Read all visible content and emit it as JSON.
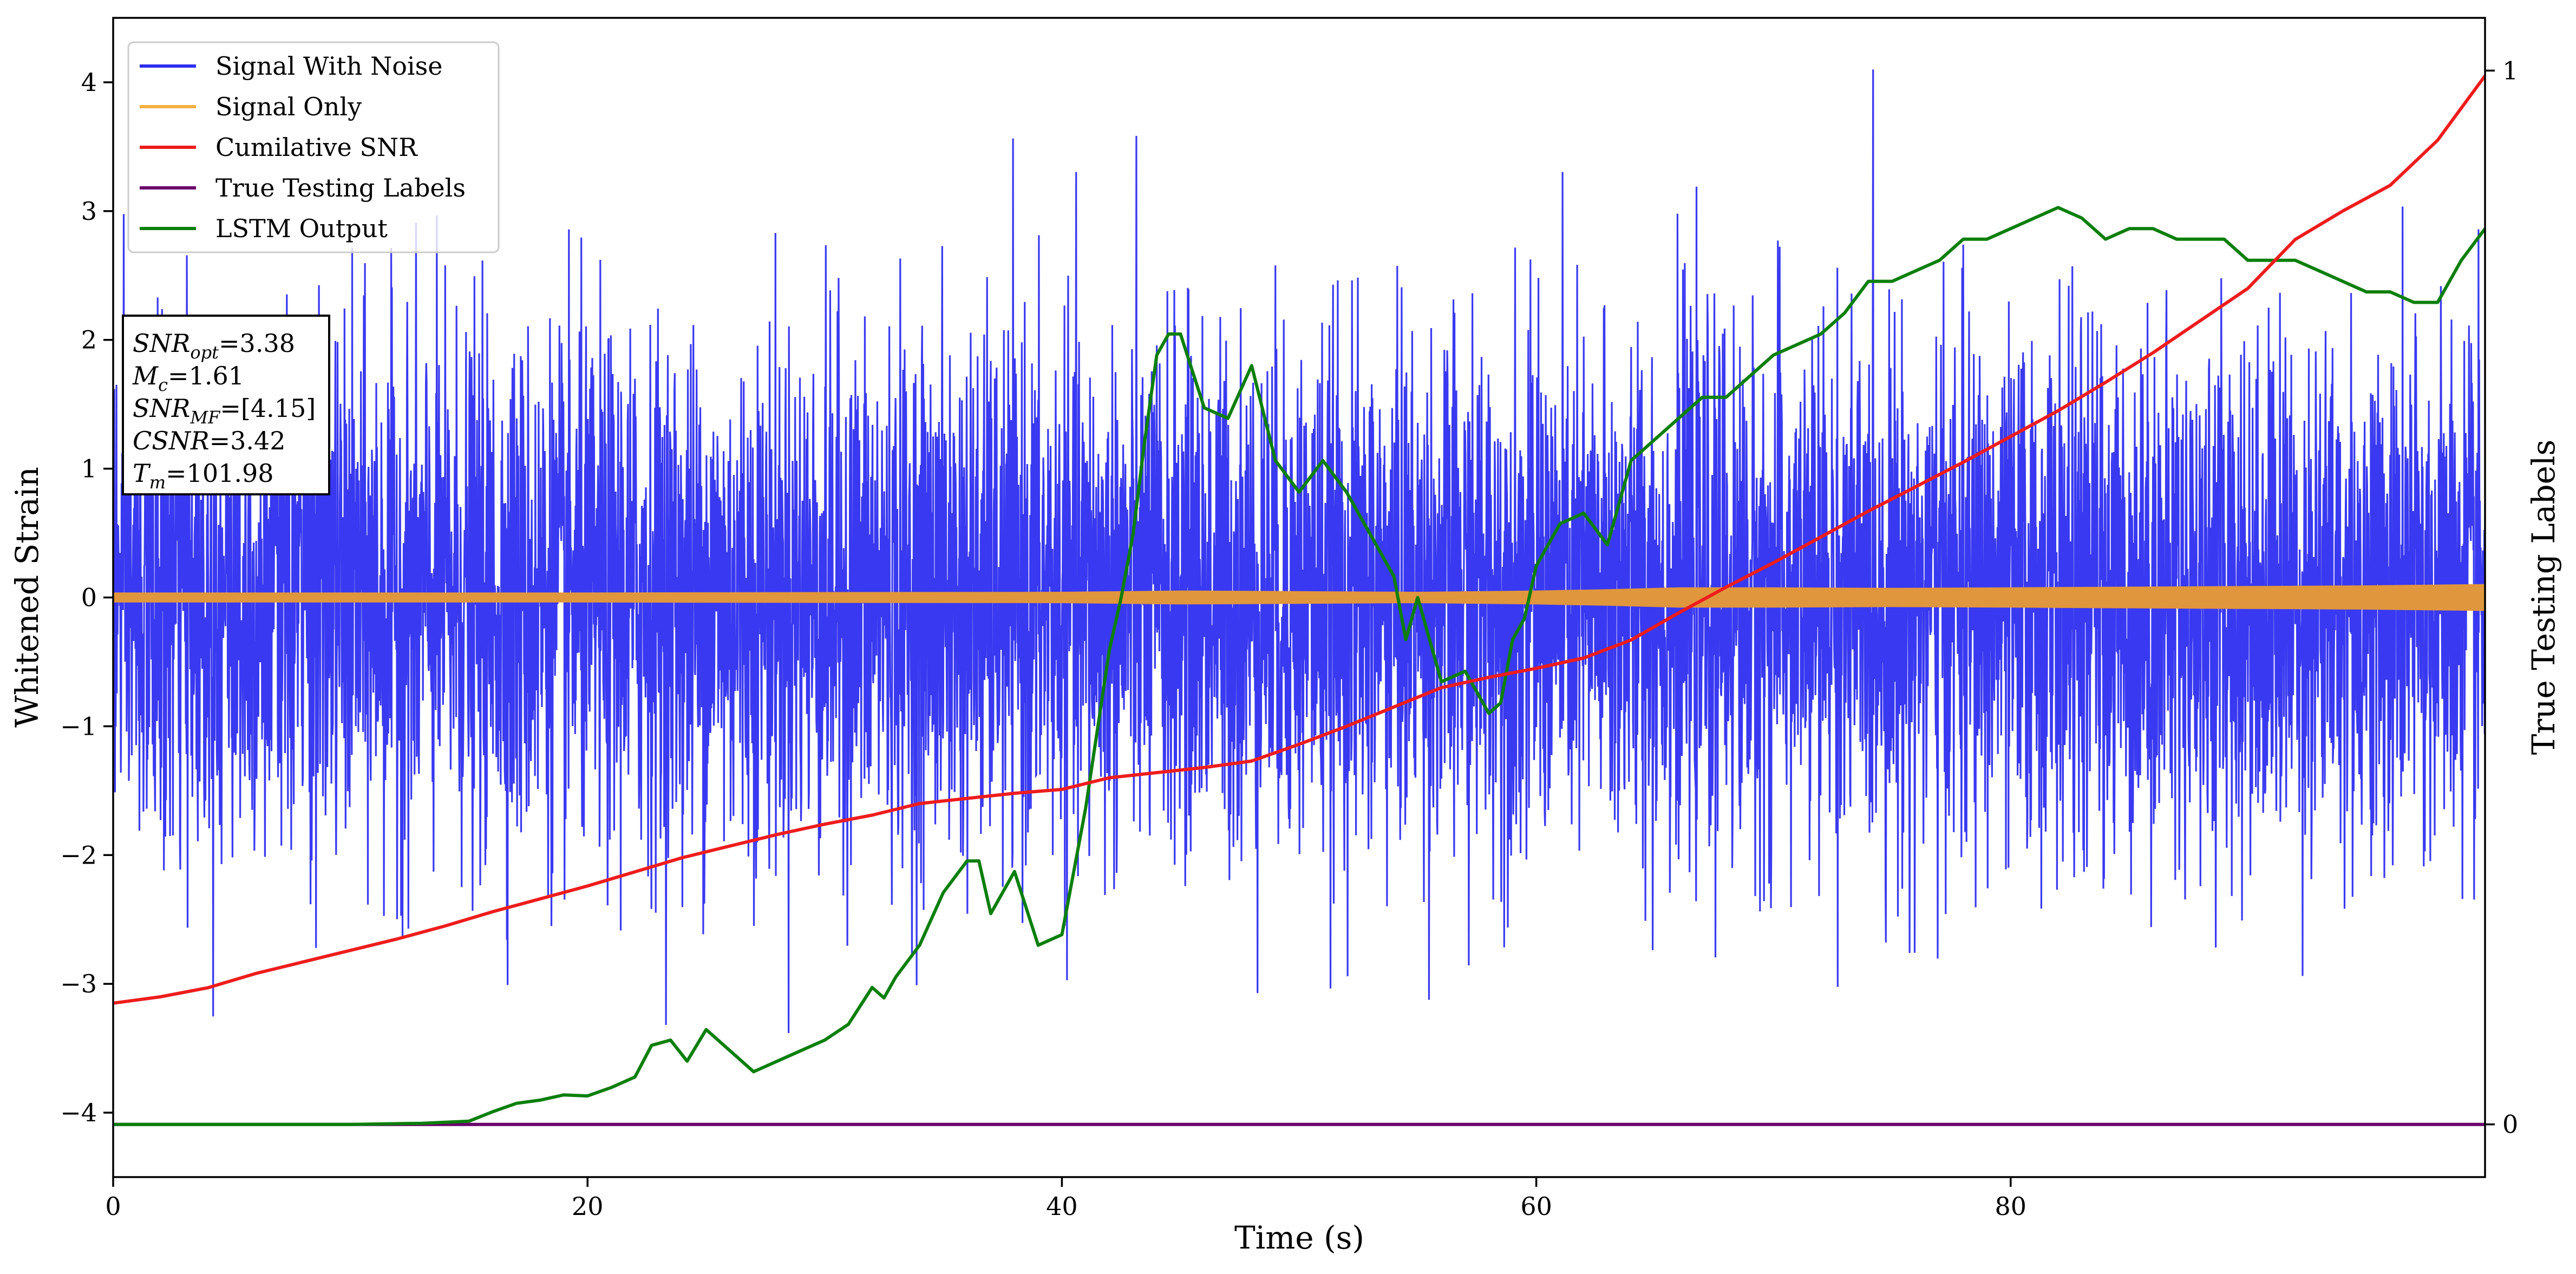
{
  "chart_data": {
    "type": "line",
    "xlabel": "Time (s)",
    "ylabel": "Whitened Strain",
    "y2label": "True Testing Labels",
    "xlim": [
      0,
      100
    ],
    "ylim": [
      -4.5,
      4.5
    ],
    "y2lim": [
      -0.05,
      1.05
    ],
    "xticks": [
      "0",
      "20",
      "40",
      "60",
      "80"
    ],
    "yticks": [
      "−4",
      "−3",
      "−2",
      "−1",
      "0",
      "1",
      "2",
      "3",
      "4"
    ],
    "y2ticks": [
      "0",
      "1"
    ],
    "legend_position": "top-left",
    "legend": [
      {
        "label": "Signal With Noise",
        "color": "#2e2ef0"
      },
      {
        "label": "Signal Only",
        "color": "#f5b041"
      },
      {
        "label": "Cumilative SNR",
        "color": "#ee1c1c"
      },
      {
        "label": "True Testing Labels",
        "color": "#6b006b"
      },
      {
        "label": "LSTM Output",
        "color": "#0c7f0c"
      }
    ],
    "annotation": {
      "snr_opt": {
        "name": "SNR",
        "sub": "opt",
        "value": "=3.38"
      },
      "mc": {
        "name": "M",
        "sub": "c",
        "value": "=1.61"
      },
      "snr_mf": {
        "name": "SNR",
        "sub": "MF",
        "value": "=[4.15]"
      },
      "csnr": {
        "name": "CSNR",
        "sub": "",
        "value": "=3.42"
      },
      "tm": {
        "name": "T",
        "sub": "m",
        "value": "=101.98"
      }
    },
    "series": [
      {
        "name": "Signal With Noise",
        "axis": "left",
        "kind": "noise",
        "color": "#2e2ef0",
        "envelope_std": 1.0,
        "approx_range": [
          -3.8,
          4.1
        ]
      },
      {
        "name": "Signal Only",
        "axis": "left",
        "kind": "band",
        "color": "#e0963c",
        "x": [
          0,
          10,
          20,
          30,
          40,
          45,
          50,
          55,
          60,
          63,
          66,
          70,
          75,
          80,
          85,
          90,
          95,
          100
        ],
        "amplitude": [
          0.035,
          0.035,
          0.035,
          0.038,
          0.04,
          0.05,
          0.045,
          0.04,
          0.05,
          0.06,
          0.075,
          0.075,
          0.07,
          0.075,
          0.08,
          0.085,
          0.09,
          0.1
        ]
      },
      {
        "name": "Cumilative SNR",
        "axis": "left",
        "color": "#ee1c1c",
        "x": [
          0,
          2,
          4,
          6,
          8,
          10,
          12,
          14,
          16,
          18,
          20,
          22,
          24,
          26,
          28,
          30,
          32,
          34,
          36,
          38,
          40,
          42,
          44,
          46,
          48,
          50,
          52,
          54,
          56,
          58,
          60,
          62,
          64,
          66,
          68,
          70,
          72,
          74,
          76,
          78,
          80,
          82,
          84,
          86,
          88,
          90,
          92,
          94,
          96,
          98,
          100
        ],
        "y": [
          -3.15,
          -3.1,
          -3.03,
          -2.92,
          -2.83,
          -2.74,
          -2.65,
          -2.55,
          -2.44,
          -2.34,
          -2.24,
          -2.13,
          -2.02,
          -1.93,
          -1.84,
          -1.76,
          -1.69,
          -1.6,
          -1.56,
          -1.52,
          -1.49,
          -1.4,
          -1.36,
          -1.32,
          -1.27,
          -1.14,
          -1.0,
          -0.85,
          -0.7,
          -0.62,
          -0.55,
          -0.47,
          -0.33,
          -0.12,
          0.08,
          0.27,
          0.47,
          0.67,
          0.86,
          1.05,
          1.25,
          1.45,
          1.67,
          1.9,
          2.15,
          2.4,
          2.78,
          3.0,
          3.2,
          3.55,
          4.05
        ]
      },
      {
        "name": "True Testing Labels",
        "axis": "right",
        "color": "#6b006b",
        "x": [
          0,
          100
        ],
        "y": [
          0,
          0
        ]
      },
      {
        "name": "LSTM Output",
        "axis": "right",
        "color": "#0c7f0c",
        "x": [
          0,
          10,
          13,
          15,
          16,
          17,
          18,
          19,
          20,
          21,
          22,
          22.7,
          23.5,
          24.2,
          25,
          26,
          27,
          28,
          29,
          30,
          31,
          32,
          32.5,
          33,
          34,
          35,
          36,
          36.5,
          37,
          38,
          39,
          40,
          41,
          42,
          42.5,
          43,
          43.5,
          44,
          44.5,
          45,
          46,
          47,
          48,
          49,
          50,
          51,
          52,
          53,
          54,
          54.5,
          55,
          55.5,
          56,
          57,
          58,
          58.5,
          59,
          59.5,
          60,
          61,
          62,
          63,
          64,
          65,
          66,
          67,
          68,
          69,
          70,
          71,
          72,
          73,
          74,
          75,
          76,
          77,
          78,
          79,
          80,
          81,
          82,
          83,
          84,
          85,
          86,
          87,
          88,
          89,
          90,
          91,
          92,
          93,
          94,
          95,
          96,
          97,
          98,
          99,
          100
        ],
        "y": [
          0,
          0,
          0.001,
          0.003,
          0.012,
          0.02,
          0.023,
          0.028,
          0.027,
          0.035,
          0.045,
          0.075,
          0.08,
          0.06,
          0.09,
          0.07,
          0.05,
          0.06,
          0.07,
          0.08,
          0.095,
          0.13,
          0.12,
          0.14,
          0.17,
          0.22,
          0.25,
          0.25,
          0.2,
          0.24,
          0.17,
          0.18,
          0.3,
          0.45,
          0.5,
          0.56,
          0.65,
          0.73,
          0.75,
          0.75,
          0.68,
          0.67,
          0.72,
          0.63,
          0.6,
          0.63,
          0.6,
          0.56,
          0.52,
          0.46,
          0.5,
          0.46,
          0.42,
          0.43,
          0.39,
          0.4,
          0.46,
          0.48,
          0.53,
          0.57,
          0.58,
          0.55,
          0.63,
          0.65,
          0.67,
          0.69,
          0.69,
          0.71,
          0.73,
          0.74,
          0.75,
          0.77,
          0.8,
          0.8,
          0.81,
          0.82,
          0.84,
          0.84,
          0.85,
          0.86,
          0.87,
          0.86,
          0.84,
          0.85,
          0.85,
          0.84,
          0.84,
          0.84,
          0.82,
          0.82,
          0.82,
          0.81,
          0.8,
          0.79,
          0.79,
          0.78,
          0.78,
          0.82,
          0.85
        ]
      }
    ]
  }
}
